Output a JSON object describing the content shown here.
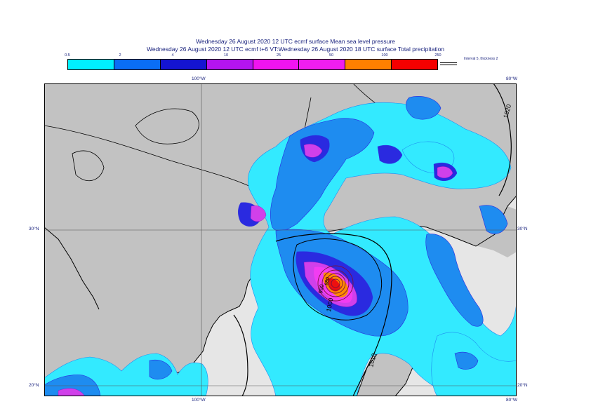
{
  "title_line1": "Wednesday 26 August 2020 12 UTC ecmf surface  Mean sea level pressure",
  "title_line2": "Wednesday 26 August 2020 12 UTC ecmf t+6 VT:Wednesday 26 August 2020 18 UTC surface  Total precipitation",
  "legend": {
    "ticks": [
      "0.5",
      "2",
      "4",
      "10",
      "25",
      "50",
      "100",
      "250"
    ],
    "colors": [
      "#00f0ff",
      "#0a6ef5",
      "#1414d2",
      "#b414f0",
      "#f014f0",
      "#f01ef0",
      "#ff8000",
      "#f50000"
    ],
    "interval_note": "Interval 5, thickness 2"
  },
  "axes": {
    "top": [
      "100°W",
      "80°W"
    ],
    "bottom": [
      "100°W",
      "80°W"
    ],
    "left": [
      "30°N",
      "20°N"
    ],
    "right": [
      "30°N",
      "20°N"
    ]
  },
  "isobar_labels": [
    "1020",
    "1010",
    "1000",
    "990",
    "980"
  ],
  "map_colors": {
    "land": "#c2c2c2",
    "sea": "#e6e6e6",
    "c1": "#33eaff",
    "c2": "#1e8cf0",
    "c3": "#2a2ae0",
    "c4": "#d040ea",
    "c5": "#f23cf2",
    "c6": "#ff8c00",
    "c7": "#ee1010"
  }
}
